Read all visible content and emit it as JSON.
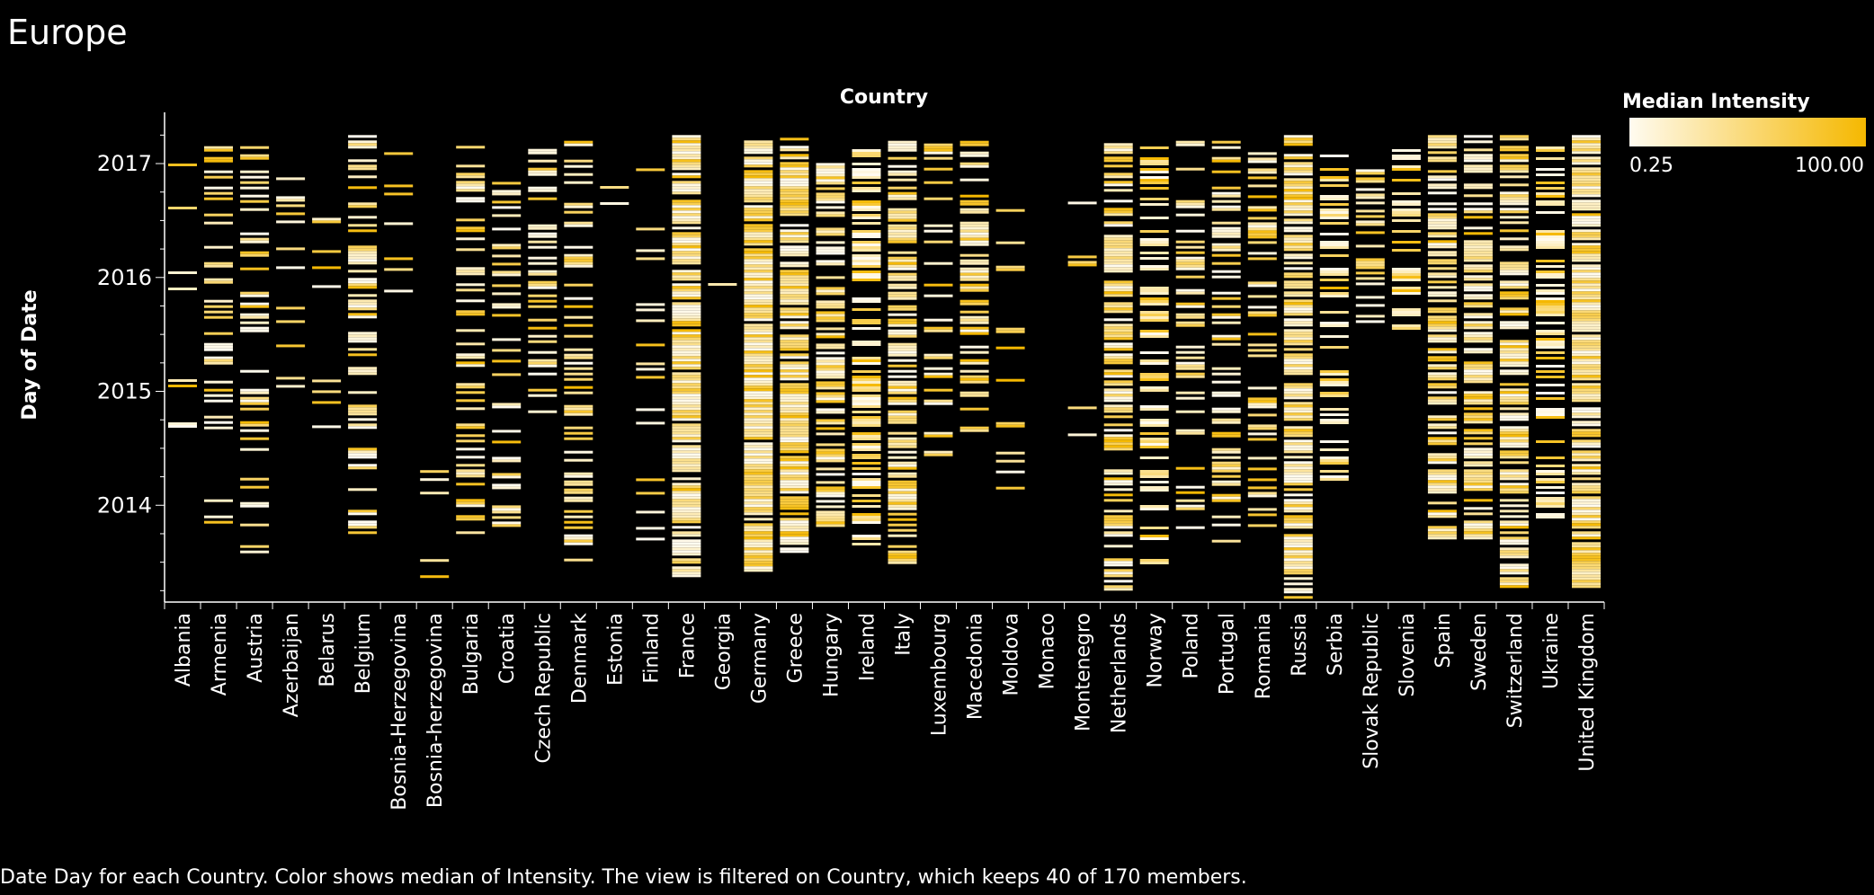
{
  "title": "Europe",
  "caption": "Date Day for each Country.  Color shows median of Intensity. The view is filtered on Country, which keeps 40 of 170 members.",
  "legend": {
    "title": "Median Intensity",
    "min_label": "0.25",
    "max_label": "100.00",
    "color_low": "#fffbf0",
    "color_high": "#f5b800"
  },
  "chart_data": {
    "type": "heatmap",
    "xlabel": "Country",
    "ylabel": "Day of Date",
    "yticks": [
      "2017",
      "2016",
      "2015",
      "2014"
    ],
    "ylim": [
      2013.15,
      2017.45
    ],
    "countries": [
      "Albania",
      "Armenia",
      "Austria",
      "Azerbaijan",
      "Belarus",
      "Belgium",
      "Bosnia-Herzegovina",
      "Bosnia-herzegovina",
      "Bulgaria",
      "Croatia",
      "Czech Republic",
      "Denmark",
      "Estonia",
      "Finland",
      "France",
      "Georgia",
      "Germany",
      "Greece",
      "Hungary",
      "Ireland",
      "Italy",
      "Luxembourg",
      "Macedonia",
      "Moldova",
      "Monaco",
      "Montenegro",
      "Netherlands",
      "Norway",
      "Poland",
      "Portugal",
      "Romania",
      "Russia",
      "Serbia",
      "Slovak Republic",
      "Slovenia",
      "Spain",
      "Sweden",
      "Switzerland",
      "Ukraine",
      "United Kingdom"
    ],
    "activity": [
      {
        "range": [
          2014.5,
          2017.0
        ],
        "density": 0.1
      },
      {
        "range": [
          2013.7,
          2017.2
        ],
        "density": 0.25
      },
      {
        "range": [
          2013.4,
          2017.2
        ],
        "density": 0.3
      },
      {
        "range": [
          2015.0,
          2016.95
        ],
        "density": 0.15
      },
      {
        "range": [
          2014.7,
          2016.95
        ],
        "density": 0.07
      },
      {
        "range": [
          2013.75,
          2017.25
        ],
        "density": 0.45
      },
      {
        "range": [
          2015.5,
          2017.1
        ],
        "density": 0.07
      },
      {
        "range": [
          2013.3,
          2014.9
        ],
        "density": 0.04
      },
      {
        "range": [
          2013.7,
          2017.25
        ],
        "density": 0.4
      },
      {
        "range": [
          2013.8,
          2017.1
        ],
        "density": 0.25
      },
      {
        "range": [
          2014.75,
          2017.2
        ],
        "density": 0.35
      },
      {
        "range": [
          2013.5,
          2017.2
        ],
        "density": 0.45
      },
      {
        "range": [
          2016.4,
          2016.85
        ],
        "density": 0.05
      },
      {
        "range": [
          2013.7,
          2017.1
        ],
        "density": 0.15
      },
      {
        "range": [
          2013.35,
          2017.25
        ],
        "density": 0.85
      },
      {
        "range": [
          2015.8,
          2016.85
        ],
        "density": 0.04
      },
      {
        "range": [
          2013.4,
          2017.25
        ],
        "density": 0.9
      },
      {
        "range": [
          2013.55,
          2017.25
        ],
        "density": 0.8
      },
      {
        "range": [
          2013.7,
          2017.1
        ],
        "density": 0.55
      },
      {
        "range": [
          2013.65,
          2017.15
        ],
        "density": 0.6
      },
      {
        "range": [
          2013.5,
          2017.2
        ],
        "density": 0.7
      },
      {
        "range": [
          2014.45,
          2017.2
        ],
        "density": 0.2
      },
      {
        "range": [
          2014.65,
          2017.2
        ],
        "density": 0.5
      },
      {
        "range": [
          2013.9,
          2017.05
        ],
        "density": 0.07
      },
      {
        "range": [
          2016.1,
          2016.15
        ],
        "density": 0.02
      },
      {
        "range": [
          2014.2,
          2016.95
        ],
        "density": 0.05
      },
      {
        "range": [
          2013.25,
          2017.25
        ],
        "density": 0.6
      },
      {
        "range": [
          2013.5,
          2017.15
        ],
        "density": 0.45
      },
      {
        "range": [
          2013.75,
          2017.2
        ],
        "density": 0.35
      },
      {
        "range": [
          2013.65,
          2017.2
        ],
        "density": 0.4
      },
      {
        "range": [
          2013.8,
          2017.1
        ],
        "density": 0.4
      },
      {
        "range": [
          2013.2,
          2017.25
        ],
        "density": 0.8
      },
      {
        "range": [
          2014.2,
          2017.15
        ],
        "density": 0.45
      },
      {
        "range": [
          2015.6,
          2016.95
        ],
        "density": 0.35
      },
      {
        "range": [
          2015.5,
          2017.15
        ],
        "density": 0.45
      },
      {
        "range": [
          2013.7,
          2017.25
        ],
        "density": 0.6
      },
      {
        "range": [
          2013.7,
          2017.25
        ],
        "density": 0.6
      },
      {
        "range": [
          2013.25,
          2017.25
        ],
        "density": 0.65
      },
      {
        "range": [
          2013.9,
          2017.15
        ],
        "density": 0.5
      },
      {
        "range": [
          2013.25,
          2017.25
        ],
        "density": 0.85
      }
    ]
  }
}
